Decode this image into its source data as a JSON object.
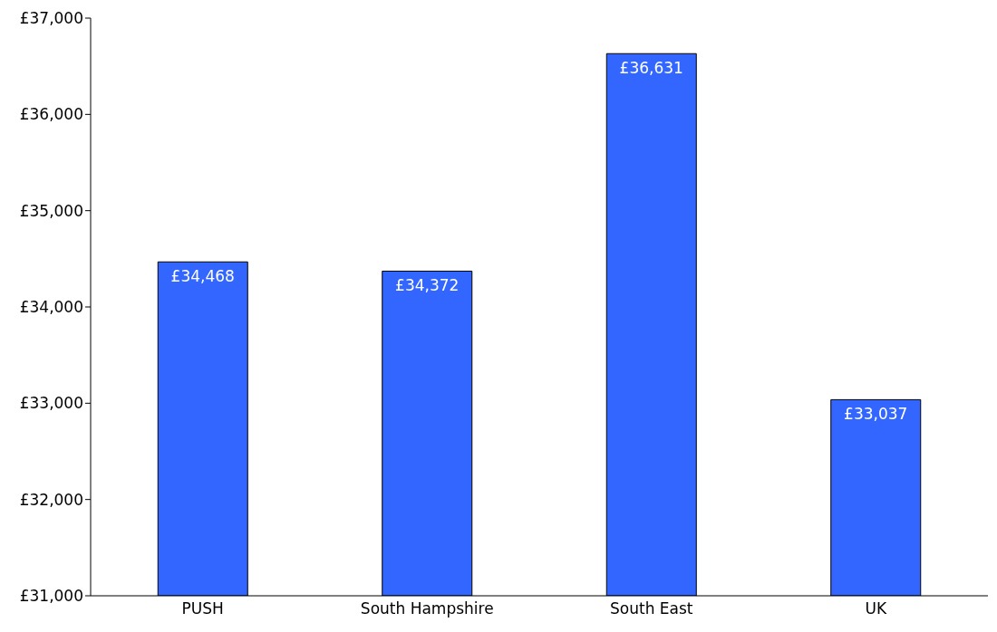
{
  "chart_data": {
    "type": "bar",
    "categories": [
      "PUSH",
      "South Hampshire",
      "South East",
      "UK"
    ],
    "values": [
      34468,
      34372,
      36631,
      33037
    ],
    "value_labels": [
      "£34,468",
      "£34,372",
      "£36,631",
      "£33,037"
    ],
    "color": "#3366ff",
    "ylim": [
      31000,
      37000
    ],
    "yticks": [
      {
        "value": 31000,
        "label": "£31,000"
      },
      {
        "value": 32000,
        "label": "£32,000"
      },
      {
        "value": 33000,
        "label": "£33,000"
      },
      {
        "value": 34000,
        "label": "£34,000"
      },
      {
        "value": 35000,
        "label": "£35,000"
      },
      {
        "value": 36000,
        "label": "£36,000"
      },
      {
        "value": 37000,
        "label": "£37,000"
      }
    ]
  }
}
